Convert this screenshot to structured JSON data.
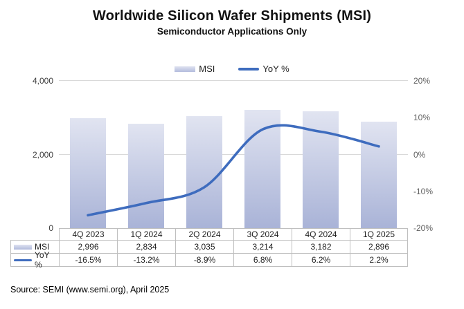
{
  "title": "Worldwide Silicon Wafer Shipments (MSI)",
  "subtitle": "Semiconductor Applications Only",
  "legend": [
    {
      "label": "MSI",
      "swatch": "bar-swatch-icon"
    },
    {
      "label": "YoY %",
      "swatch": "line-swatch-icon"
    }
  ],
  "colors": {
    "bar_top": "#e1e4f1",
    "bar_bottom": "#a9b3d7",
    "line": "#3e6cbe",
    "gridline": "#d9d9d9",
    "table_border": "#bfbfbf",
    "left_axis_text": "#3d3d3d",
    "right_axis_text": "#5f5f5f"
  },
  "chart_data": {
    "type": "bar+line combo",
    "categories": [
      "4Q 2023",
      "1Q 2024",
      "2Q 2024",
      "3Q 2024",
      "4Q 2024",
      "1Q 2025"
    ],
    "series": [
      {
        "name": "MSI",
        "type": "bar",
        "axis": "left",
        "values": [
          2996,
          2834,
          3035,
          3214,
          3182,
          2896
        ]
      },
      {
        "name": "YoY %",
        "type": "line",
        "axis": "right",
        "values": [
          -16.5,
          -13.2,
          -8.9,
          6.8,
          6.2,
          2.2
        ]
      }
    ],
    "left_axis": {
      "min": 0,
      "max": 4000,
      "tick_labels": [
        "4,000",
        "2,000",
        "0"
      ]
    },
    "right_axis": {
      "min": -20,
      "max": 20,
      "tick_labels": [
        "20%",
        "10%",
        "0%",
        "-10%",
        "-20%"
      ]
    },
    "grid": "horizontal only",
    "legend_position": "top center",
    "table": {
      "rows": [
        {
          "label": "MSI",
          "swatch": "bar",
          "values": [
            "2,996",
            "2,834",
            "3,035",
            "3,214",
            "3,182",
            "2,896"
          ]
        },
        {
          "label": "YoY %",
          "swatch": "line",
          "values": [
            "-16.5%",
            "-13.2%",
            "-8.9%",
            "6.8%",
            "6.2%",
            "2.2%"
          ]
        }
      ]
    }
  },
  "source": "Source: SEMI (www.semi.org), April 2025"
}
